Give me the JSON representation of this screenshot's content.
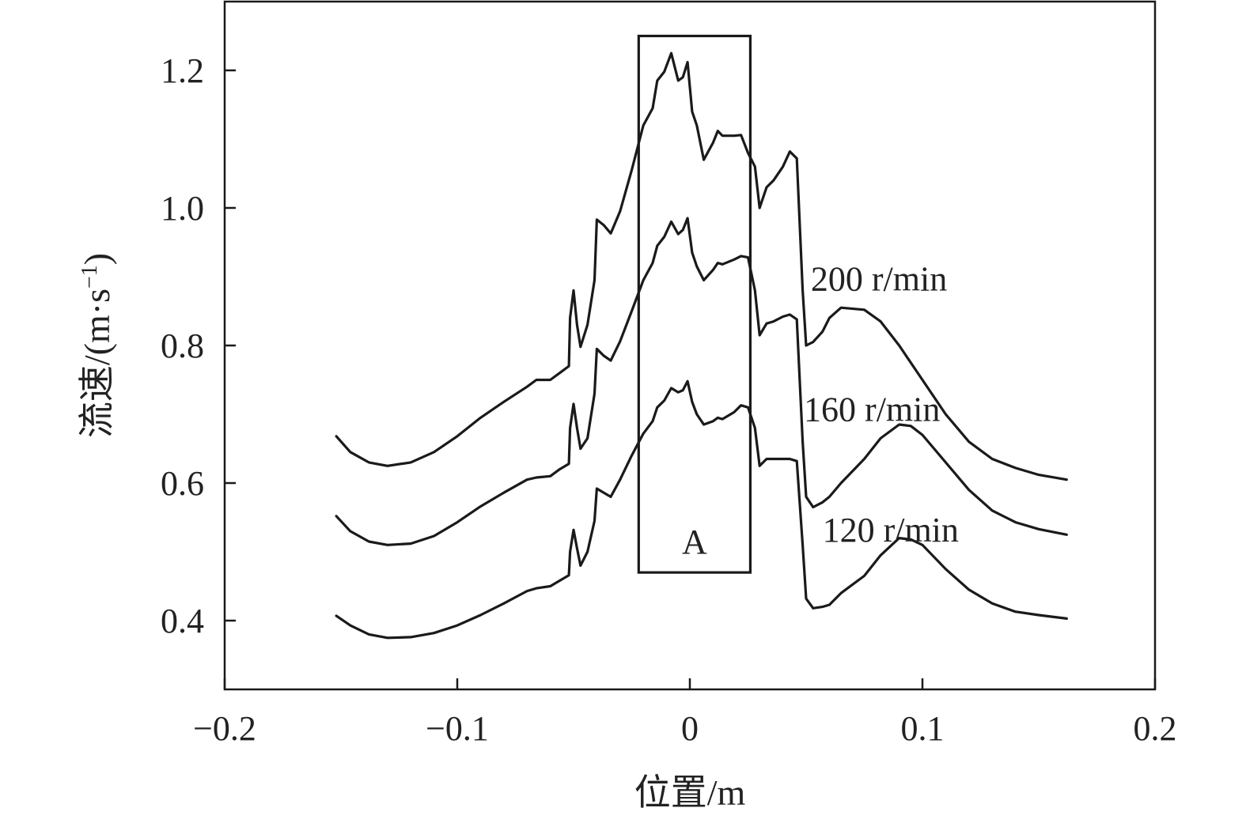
{
  "chart_data": {
    "type": "line",
    "xlabel": "位置/m",
    "ylabel_prefix": "流速/(m·s",
    "ylabel_sup": "−1",
    "ylabel_suffix": ")",
    "xlim": [
      -0.2,
      0.2
    ],
    "ylim": [
      0.3,
      1.3
    ],
    "x_ticks": [
      -0.2,
      -0.1,
      0,
      0.1,
      0.2
    ],
    "x_tick_labels": [
      "−0.2",
      "−0.1",
      "0",
      "0.1",
      "0.2"
    ],
    "y_ticks": [
      0.4,
      0.6,
      0.8,
      1.0,
      1.2
    ],
    "y_tick_labels": [
      "0.4",
      "0.6",
      "0.8",
      "1.0",
      "1.2"
    ],
    "grid": false,
    "line_color": "#1a1a1a",
    "annotation_box": {
      "label": "A",
      "x_range": [
        -0.022,
        0.026
      ],
      "y_range": [
        0.47,
        1.25
      ]
    },
    "series": [
      {
        "name": "200 r/min",
        "label_at": [
          0.052,
          0.88
        ],
        "points": [
          [
            -0.152,
            0.668
          ],
          [
            -0.146,
            0.645
          ],
          [
            -0.138,
            0.63
          ],
          [
            -0.13,
            0.625
          ],
          [
            -0.12,
            0.63
          ],
          [
            -0.11,
            0.645
          ],
          [
            -0.1,
            0.668
          ],
          [
            -0.09,
            0.695
          ],
          [
            -0.08,
            0.718
          ],
          [
            -0.07,
            0.74
          ],
          [
            -0.066,
            0.75
          ],
          [
            -0.06,
            0.75
          ],
          [
            -0.056,
            0.76
          ],
          [
            -0.052,
            0.77
          ],
          [
            -0.0515,
            0.84
          ],
          [
            -0.05,
            0.88
          ],
          [
            -0.0485,
            0.83
          ],
          [
            -0.047,
            0.798
          ],
          [
            -0.044,
            0.83
          ],
          [
            -0.041,
            0.895
          ],
          [
            -0.04,
            0.983
          ],
          [
            -0.037,
            0.975
          ],
          [
            -0.034,
            0.963
          ],
          [
            -0.03,
            0.995
          ],
          [
            -0.025,
            1.055
          ],
          [
            -0.02,
            1.12
          ],
          [
            -0.016,
            1.145
          ],
          [
            -0.014,
            1.185
          ],
          [
            -0.011,
            1.198
          ],
          [
            -0.008,
            1.225
          ],
          [
            -0.005,
            1.185
          ],
          [
            -0.003,
            1.19
          ],
          [
            -0.001,
            1.212
          ],
          [
            0.001,
            1.14
          ],
          [
            0.003,
            1.12
          ],
          [
            0.006,
            1.07
          ],
          [
            0.01,
            1.095
          ],
          [
            0.012,
            1.112
          ],
          [
            0.014,
            1.105
          ],
          [
            0.019,
            1.105
          ],
          [
            0.022,
            1.106
          ],
          [
            0.025,
            1.08
          ],
          [
            0.028,
            1.06
          ],
          [
            0.03,
            1.0
          ],
          [
            0.033,
            1.03
          ],
          [
            0.036,
            1.04
          ],
          [
            0.04,
            1.06
          ],
          [
            0.043,
            1.082
          ],
          [
            0.046,
            1.072
          ],
          [
            0.0485,
            0.88
          ],
          [
            0.05,
            0.8
          ],
          [
            0.053,
            0.805
          ],
          [
            0.057,
            0.82
          ],
          [
            0.06,
            0.84
          ],
          [
            0.065,
            0.855
          ],
          [
            0.075,
            0.852
          ],
          [
            0.082,
            0.835
          ],
          [
            0.09,
            0.8
          ],
          [
            0.1,
            0.75
          ],
          [
            0.11,
            0.7
          ],
          [
            0.12,
            0.66
          ],
          [
            0.13,
            0.635
          ],
          [
            0.14,
            0.622
          ],
          [
            0.15,
            0.612
          ],
          [
            0.162,
            0.605
          ]
        ]
      },
      {
        "name": "160 r/min",
        "label_at": [
          0.049,
          0.69
        ],
        "points": [
          [
            -0.152,
            0.552
          ],
          [
            -0.146,
            0.53
          ],
          [
            -0.138,
            0.515
          ],
          [
            -0.13,
            0.51
          ],
          [
            -0.12,
            0.512
          ],
          [
            -0.11,
            0.523
          ],
          [
            -0.1,
            0.543
          ],
          [
            -0.09,
            0.566
          ],
          [
            -0.08,
            0.586
          ],
          [
            -0.07,
            0.605
          ],
          [
            -0.066,
            0.608
          ],
          [
            -0.06,
            0.61
          ],
          [
            -0.056,
            0.62
          ],
          [
            -0.052,
            0.628
          ],
          [
            -0.0515,
            0.68
          ],
          [
            -0.05,
            0.715
          ],
          [
            -0.0485,
            0.68
          ],
          [
            -0.047,
            0.65
          ],
          [
            -0.044,
            0.665
          ],
          [
            -0.041,
            0.73
          ],
          [
            -0.04,
            0.795
          ],
          [
            -0.037,
            0.785
          ],
          [
            -0.034,
            0.778
          ],
          [
            -0.03,
            0.806
          ],
          [
            -0.025,
            0.85
          ],
          [
            -0.02,
            0.895
          ],
          [
            -0.016,
            0.92
          ],
          [
            -0.014,
            0.945
          ],
          [
            -0.011,
            0.958
          ],
          [
            -0.008,
            0.98
          ],
          [
            -0.005,
            0.962
          ],
          [
            -0.003,
            0.968
          ],
          [
            -0.001,
            0.985
          ],
          [
            0.001,
            0.935
          ],
          [
            0.003,
            0.915
          ],
          [
            0.006,
            0.895
          ],
          [
            0.01,
            0.91
          ],
          [
            0.012,
            0.92
          ],
          [
            0.014,
            0.918
          ],
          [
            0.019,
            0.925
          ],
          [
            0.022,
            0.93
          ],
          [
            0.025,
            0.928
          ],
          [
            0.028,
            0.88
          ],
          [
            0.03,
            0.815
          ],
          [
            0.033,
            0.832
          ],
          [
            0.036,
            0.835
          ],
          [
            0.04,
            0.842
          ],
          [
            0.043,
            0.845
          ],
          [
            0.046,
            0.838
          ],
          [
            0.0485,
            0.66
          ],
          [
            0.05,
            0.58
          ],
          [
            0.053,
            0.565
          ],
          [
            0.057,
            0.572
          ],
          [
            0.06,
            0.58
          ],
          [
            0.065,
            0.6
          ],
          [
            0.075,
            0.635
          ],
          [
            0.082,
            0.665
          ],
          [
            0.09,
            0.685
          ],
          [
            0.095,
            0.683
          ],
          [
            0.1,
            0.67
          ],
          [
            0.11,
            0.63
          ],
          [
            0.12,
            0.59
          ],
          [
            0.13,
            0.56
          ],
          [
            0.14,
            0.543
          ],
          [
            0.15,
            0.533
          ],
          [
            0.162,
            0.525
          ]
        ]
      },
      {
        "name": "120 r/min",
        "label_at": [
          0.057,
          0.515
        ],
        "points": [
          [
            -0.152,
            0.407
          ],
          [
            -0.146,
            0.393
          ],
          [
            -0.138,
            0.38
          ],
          [
            -0.13,
            0.375
          ],
          [
            -0.12,
            0.376
          ],
          [
            -0.11,
            0.382
          ],
          [
            -0.1,
            0.393
          ],
          [
            -0.09,
            0.408
          ],
          [
            -0.08,
            0.425
          ],
          [
            -0.07,
            0.443
          ],
          [
            -0.066,
            0.447
          ],
          [
            -0.06,
            0.45
          ],
          [
            -0.056,
            0.458
          ],
          [
            -0.052,
            0.466
          ],
          [
            -0.0515,
            0.5
          ],
          [
            -0.05,
            0.532
          ],
          [
            -0.0485,
            0.505
          ],
          [
            -0.047,
            0.48
          ],
          [
            -0.044,
            0.5
          ],
          [
            -0.041,
            0.545
          ],
          [
            -0.04,
            0.592
          ],
          [
            -0.037,
            0.586
          ],
          [
            -0.034,
            0.58
          ],
          [
            -0.03,
            0.605
          ],
          [
            -0.025,
            0.64
          ],
          [
            -0.02,
            0.672
          ],
          [
            -0.016,
            0.69
          ],
          [
            -0.014,
            0.71
          ],
          [
            -0.011,
            0.72
          ],
          [
            -0.008,
            0.738
          ],
          [
            -0.005,
            0.732
          ],
          [
            -0.003,
            0.735
          ],
          [
            -0.001,
            0.748
          ],
          [
            0.001,
            0.718
          ],
          [
            0.003,
            0.7
          ],
          [
            0.006,
            0.685
          ],
          [
            0.01,
            0.69
          ],
          [
            0.012,
            0.695
          ],
          [
            0.014,
            0.693
          ],
          [
            0.019,
            0.703
          ],
          [
            0.022,
            0.713
          ],
          [
            0.025,
            0.71
          ],
          [
            0.028,
            0.68
          ],
          [
            0.03,
            0.625
          ],
          [
            0.033,
            0.635
          ],
          [
            0.036,
            0.635
          ],
          [
            0.04,
            0.635
          ],
          [
            0.043,
            0.635
          ],
          [
            0.046,
            0.632
          ],
          [
            0.0485,
            0.51
          ],
          [
            0.05,
            0.432
          ],
          [
            0.053,
            0.418
          ],
          [
            0.057,
            0.42
          ],
          [
            0.06,
            0.423
          ],
          [
            0.065,
            0.44
          ],
          [
            0.075,
            0.465
          ],
          [
            0.082,
            0.495
          ],
          [
            0.09,
            0.52
          ],
          [
            0.095,
            0.518
          ],
          [
            0.1,
            0.51
          ],
          [
            0.11,
            0.475
          ],
          [
            0.12,
            0.445
          ],
          [
            0.13,
            0.425
          ],
          [
            0.14,
            0.413
          ],
          [
            0.15,
            0.408
          ],
          [
            0.162,
            0.403
          ]
        ]
      }
    ]
  }
}
